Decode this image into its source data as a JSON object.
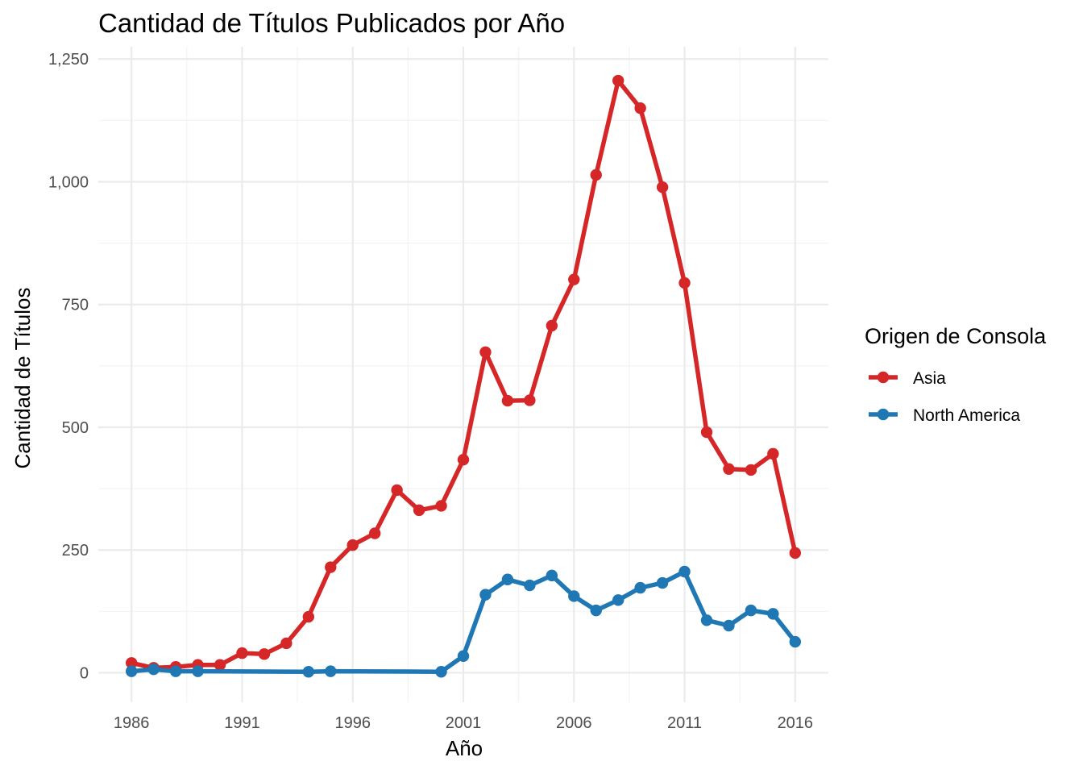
{
  "chart_data": {
    "type": "line",
    "title": "Cantidad de Títulos Publicados por Año",
    "xlabel": "Año",
    "ylabel": "Cantidad de Títulos",
    "xlim": [
      1984.5,
      2017.5
    ],
    "ylim": [
      -60,
      1275
    ],
    "x_ticks": [
      1986,
      1991,
      1996,
      2001,
      2006,
      2011,
      2016
    ],
    "x_tick_labels": [
      "1986",
      "1991",
      "1996",
      "2001",
      "2006",
      "2011",
      "2016"
    ],
    "y_ticks": [
      0,
      250,
      500,
      750,
      1000,
      1250
    ],
    "y_tick_labels": [
      "0",
      "250",
      "500",
      "750",
      "1,000",
      "1,250"
    ],
    "grid": true,
    "legend": {
      "title": "Origen de Consola",
      "placement": "right"
    },
    "series": [
      {
        "name": "Asia",
        "color": "#d62728",
        "x": [
          1986,
          1987,
          1988,
          1989,
          1990,
          1991,
          1992,
          1993,
          1994,
          1995,
          1996,
          1997,
          1998,
          1999,
          2000,
          2001,
          2002,
          2003,
          2004,
          2005,
          2006,
          2007,
          2008,
          2009,
          2010,
          2011,
          2012,
          2013,
          2014,
          2015,
          2016
        ],
        "values": [
          20,
          10,
          12,
          16,
          16,
          40,
          38,
          60,
          114,
          215,
          260,
          284,
          372,
          331,
          340,
          434,
          653,
          554,
          555,
          707,
          801,
          1014,
          1206,
          1150,
          989,
          794,
          490,
          415,
          413,
          446,
          244
        ]
      },
      {
        "name": "North America",
        "color": "#1f77b4",
        "x": [
          1986,
          1987,
          1988,
          1989,
          1994,
          1995,
          2000,
          2001,
          2002,
          2003,
          2004,
          2005,
          2006,
          2007,
          2008,
          2009,
          2010,
          2011,
          2012,
          2013,
          2014,
          2015,
          2016
        ],
        "values": [
          3,
          7,
          3,
          3,
          2,
          3,
          2,
          34,
          159,
          190,
          178,
          198,
          156,
          127,
          148,
          173,
          183,
          206,
          107,
          96,
          127,
          120,
          63
        ]
      }
    ]
  }
}
